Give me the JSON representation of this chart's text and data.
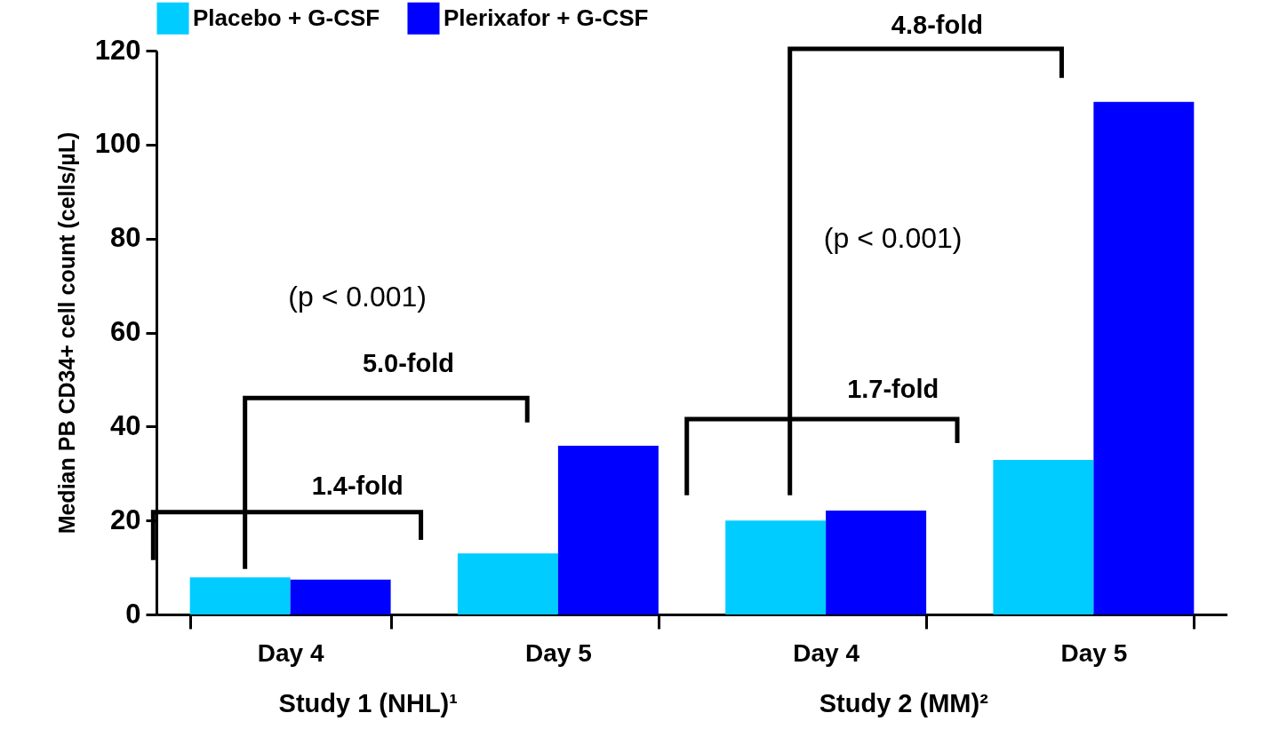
{
  "chart_data": {
    "type": "bar",
    "ylabel": "Median PB CD34+ cell count (cells/µL)",
    "categories": [
      "Day 4",
      "Day 5",
      "Day 4",
      "Day 5"
    ],
    "series": [
      {
        "name": "Placebo + G-CSF",
        "color": "#00ccff",
        "values": [
          7.9,
          13.0,
          20.0,
          32.9
        ]
      },
      {
        "name": "Plerixafor + G-CSF",
        "color": "#0000ff",
        "values": [
          7.4,
          35.9,
          22.1,
          109.1
        ]
      }
    ],
    "ylim": [
      0,
      120
    ],
    "yticks": [
      0,
      20,
      40,
      60,
      80,
      100,
      120
    ],
    "grid": false,
    "legend": "top",
    "annotations": [
      "4.8-fold",
      "(p < 0.001)",
      "(p < 0.001)",
      "5.0-fold",
      "1.7-fold",
      "1.4-fold",
      "Study 1 (NHL)¹",
      "Study 2 (MM)²"
    ]
  }
}
